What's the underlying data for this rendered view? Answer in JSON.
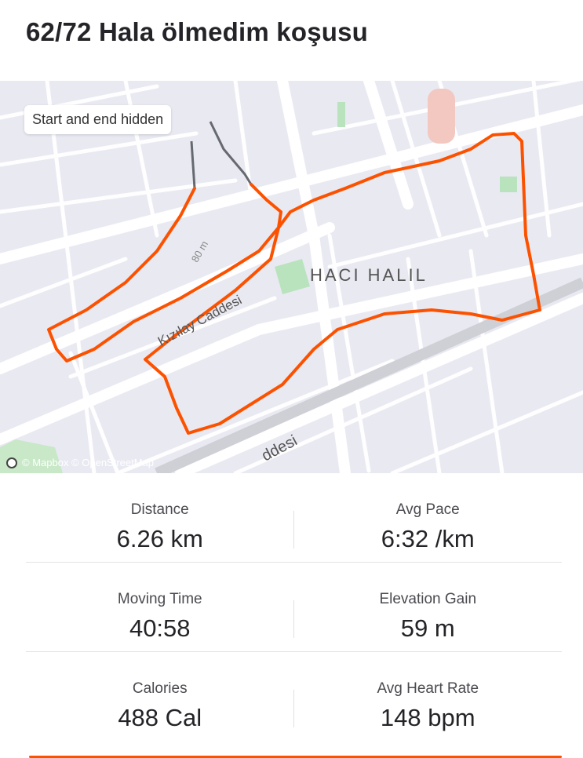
{
  "title": "62/72 Hala ölmedim koşusu",
  "map": {
    "privacy_label": "Start and end hidden",
    "labels": {
      "district": "HACI HALIL",
      "street": "Kızılay Caddesi",
      "street2": "ddesi",
      "scale": "80 m"
    },
    "attribution": "© Mapbox © OpenStreetMap",
    "route_color": "#fc5200",
    "hidden_route_color": "#666a70"
  },
  "stats": [
    [
      {
        "label": "Distance",
        "value": "6.26 km"
      },
      {
        "label": "Avg Pace",
        "value": "6:32 /km"
      }
    ],
    [
      {
        "label": "Moving Time",
        "value": "40:58"
      },
      {
        "label": "Elevation Gain",
        "value": "59 m"
      }
    ],
    [
      {
        "label": "Calories",
        "value": "488 Cal"
      },
      {
        "label": "Avg Heart Rate",
        "value": "148 bpm"
      }
    ]
  ],
  "accent_color": "#fc5200"
}
